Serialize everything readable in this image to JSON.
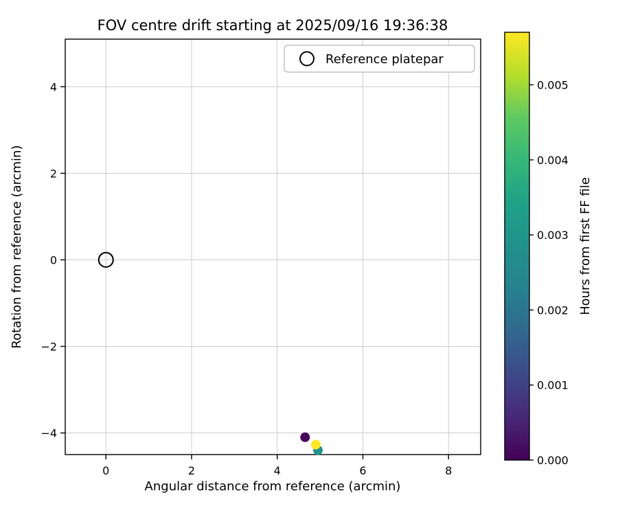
{
  "chart_data": {
    "type": "scatter",
    "title": "FOV centre drift starting at 2025/09/16 19:36:38",
    "xlabel": "Angular distance from reference (arcmin)",
    "ylabel": "Rotation from reference (arcmin)",
    "xlim": [
      -0.95,
      8.75
    ],
    "ylim": [
      -4.5,
      5.1
    ],
    "grid": true,
    "xticks": [
      {
        "value": 0,
        "label": "0"
      },
      {
        "value": 2,
        "label": "2"
      },
      {
        "value": 4,
        "label": "4"
      },
      {
        "value": 6,
        "label": "6"
      },
      {
        "value": 8,
        "label": "8"
      }
    ],
    "yticks": [
      {
        "value": -4,
        "label": "−4"
      },
      {
        "value": -2,
        "label": "−2"
      },
      {
        "value": 0,
        "label": "0"
      },
      {
        "value": 2,
        "label": "2"
      },
      {
        "value": 4,
        "label": "4"
      }
    ],
    "legend": {
      "label": "Reference platepar",
      "position": "upper center"
    },
    "reference": {
      "x": 0,
      "y": 0
    },
    "points": [
      {
        "x": 4.65,
        "y": -4.1,
        "hours": 0.0,
        "color": "#46085c"
      },
      {
        "x": 4.95,
        "y": -4.4,
        "hours": 0.003,
        "color": "#20938c"
      },
      {
        "x": 4.9,
        "y": -4.27,
        "hours": 0.0057,
        "color": "#fde725"
      }
    ],
    "colorbar": {
      "label": "Hours from first FF file",
      "colormap": "viridis",
      "min": 0,
      "max": 0.0057,
      "ticks": [
        {
          "value": 0.0,
          "label": "0.000"
        },
        {
          "value": 0.001,
          "label": "0.001"
        },
        {
          "value": 0.002,
          "label": "0.002"
        },
        {
          "value": 0.003,
          "label": "0.003"
        },
        {
          "value": 0.004,
          "label": "0.004"
        },
        {
          "value": 0.005,
          "label": "0.005"
        }
      ],
      "stops": [
        {
          "offset": 0.0,
          "color": "#440154"
        },
        {
          "offset": 0.1,
          "color": "#482878"
        },
        {
          "offset": 0.2,
          "color": "#3e4989"
        },
        {
          "offset": 0.3,
          "color": "#31688e"
        },
        {
          "offset": 0.4,
          "color": "#26828e"
        },
        {
          "offset": 0.5,
          "color": "#21918c"
        },
        {
          "offset": 0.6,
          "color": "#1fa187"
        },
        {
          "offset": 0.7,
          "color": "#35b779"
        },
        {
          "offset": 0.8,
          "color": "#5ec962"
        },
        {
          "offset": 0.9,
          "color": "#b5de2b"
        },
        {
          "offset": 1.0,
          "color": "#fde725"
        }
      ]
    }
  }
}
